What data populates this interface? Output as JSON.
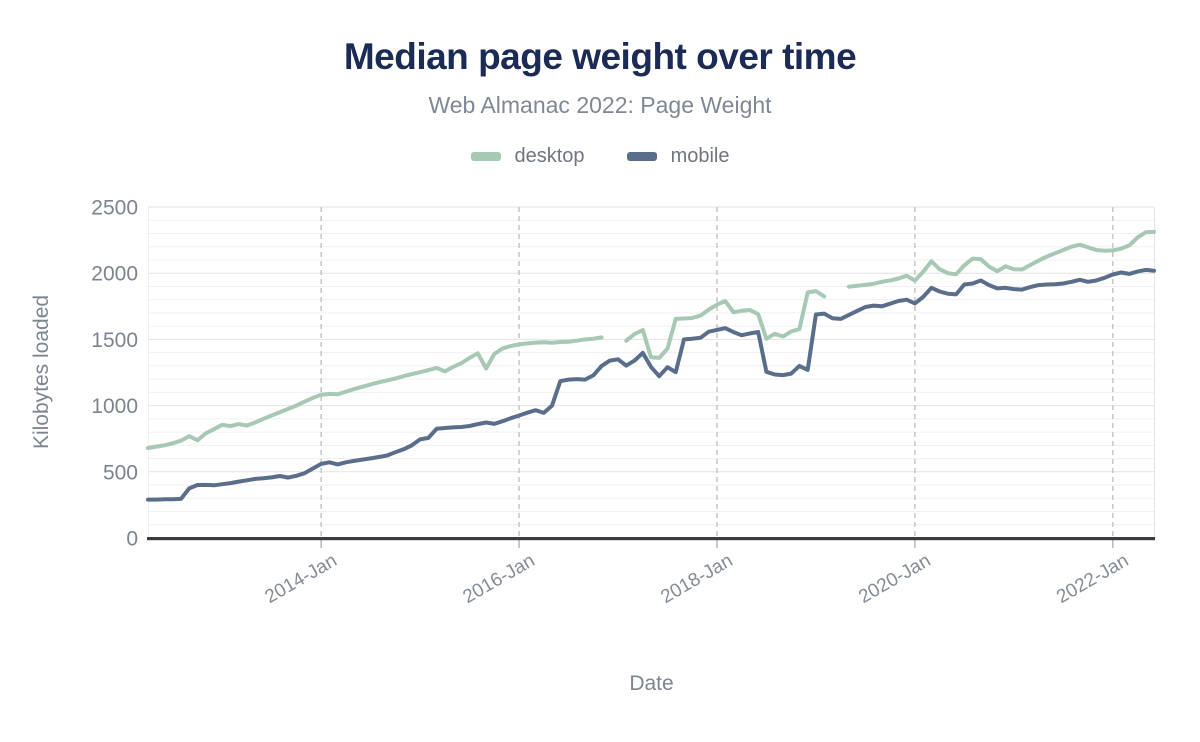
{
  "header": {
    "title": "Median page weight over time",
    "subtitle": "Web Almanac 2022: Page Weight"
  },
  "chart_data": {
    "type": "line",
    "title": "Median page weight over time",
    "subtitle": "Web Almanac 2022: Page Weight",
    "xlabel": "Date",
    "ylabel": "Kilobytes loaded",
    "ylim": [
      0,
      2500
    ],
    "y_tick_step": 500,
    "y_minor_step": 100,
    "y_ticks": [
      0,
      500,
      1000,
      1500,
      2000,
      2500
    ],
    "x_ticks": [
      {
        "label": "2014-Jan",
        "month": 21
      },
      {
        "label": "2016-Jan",
        "month": 45
      },
      {
        "label": "2018-Jan",
        "month": 69
      },
      {
        "label": "2020-Jan",
        "month": 93
      },
      {
        "label": "2022-Jan",
        "month": 117
      }
    ],
    "grid": {
      "horizontal": true,
      "vertical_dashed": true,
      "legend_position": "top"
    },
    "colors": {
      "title": "#1b2b55",
      "subtitle": "#7f8893",
      "axis_text": "#7c848e",
      "axis_line": "#3b3c42",
      "grid_minor": "#f0f0f0",
      "grid_major": "#e2e2e2",
      "grid_dashed": "#c9c9c9",
      "desktop": "#a6c8b4",
      "mobile": "#5a6e8c"
    },
    "series": [
      {
        "name": "desktop",
        "color": "#a6c8b4",
        "values": [
          680,
          690,
          700,
          715,
          735,
          770,
          738,
          790,
          822,
          855,
          845,
          860,
          850,
          872,
          900,
          925,
          950,
          975,
          1000,
          1030,
          1058,
          1082,
          1088,
          1085,
          1105,
          1125,
          1142,
          1160,
          1176,
          1190,
          1205,
          1222,
          1238,
          1252,
          1268,
          1285,
          1258,
          1292,
          1320,
          1360,
          1395,
          1280,
          1390,
          1432,
          1450,
          1462,
          1470,
          1476,
          1478,
          1474,
          1480,
          1482,
          1490,
          1500,
          1505,
          1515,
          null,
          null,
          1490,
          1540,
          1570,
          1365,
          1360,
          1430,
          1655,
          1658,
          1662,
          1680,
          1725,
          1762,
          1790,
          1705,
          1716,
          1722,
          1690,
          1505,
          1542,
          1522,
          1560,
          1578,
          1855,
          1865,
          1825,
          null,
          null,
          1898,
          1905,
          1912,
          1920,
          1935,
          1945,
          1960,
          1980,
          1945,
          2010,
          2090,
          2030,
          2000,
          1992,
          2060,
          2110,
          2105,
          2050,
          2015,
          2052,
          2030,
          2028,
          2062,
          2095,
          2125,
          2150,
          2175,
          2200,
          2215,
          2195,
          2175,
          2170,
          2172,
          2185,
          2210,
          2270,
          2310,
          2312
        ]
      },
      {
        "name": "mobile",
        "color": "#5a6e8c",
        "values": [
          290,
          290,
          292,
          293,
          295,
          375,
          400,
          401,
          398,
          406,
          415,
          426,
          436,
          446,
          452,
          458,
          468,
          456,
          470,
          490,
          525,
          560,
          572,
          556,
          572,
          582,
          592,
          601,
          612,
          623,
          648,
          670,
          700,
          745,
          756,
          825,
          831,
          835,
          838,
          846,
          860,
          872,
          862,
          882,
          905,
          925,
          946,
          965,
          945,
          1000,
          1185,
          1196,
          1200,
          1196,
          1228,
          1298,
          1340,
          1350,
          1302,
          1340,
          1398,
          1292,
          1222,
          1290,
          1252,
          1500,
          1505,
          1512,
          1558,
          1572,
          1585,
          1555,
          1532,
          1545,
          1556,
          1255,
          1235,
          1230,
          1242,
          1300,
          1270,
          1688,
          1695,
          1660,
          1655,
          1685,
          1715,
          1745,
          1755,
          1750,
          1770,
          1790,
          1800,
          1772,
          1820,
          1890,
          1862,
          1845,
          1840,
          1915,
          1922,
          1945,
          1910,
          1885,
          1890,
          1880,
          1876,
          1895,
          1910,
          1915,
          1916,
          1922,
          1935,
          1950,
          1935,
          1945,
          1965,
          1990,
          2005,
          1995,
          2012,
          2025,
          2018
        ]
      }
    ]
  }
}
